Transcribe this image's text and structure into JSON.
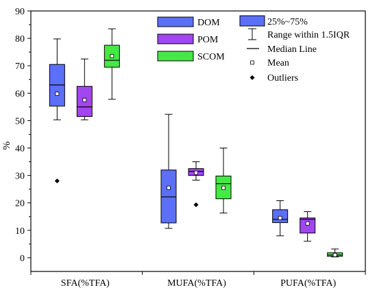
{
  "chart_data": {
    "type": "box",
    "ylabel": "%",
    "ylim": [
      -5,
      90
    ],
    "yticks": [
      0,
      10,
      20,
      30,
      40,
      50,
      60,
      70,
      80,
      90
    ],
    "categories": [
      "SFA(%TFA)",
      "MUFA(%TFA)",
      "PUFA(%TFA)"
    ],
    "series": [
      {
        "name": "DOM",
        "color": "#5b6ff7",
        "boxes": [
          {
            "whisker_low": 50.3,
            "q1": 55.3,
            "median": 63.0,
            "q3": 70.5,
            "whisker_high": 79.8,
            "mean": 59.8,
            "outliers": [
              28.0
            ]
          },
          {
            "whisker_low": 10.7,
            "q1": 12.7,
            "median": 22.2,
            "q3": 32.0,
            "whisker_high": 52.3,
            "mean": 25.5,
            "outliers": []
          },
          {
            "whisker_low": 8.0,
            "q1": 12.8,
            "median": 14.0,
            "q3": 17.5,
            "whisker_high": 20.8,
            "mean": 14.5,
            "outliers": []
          }
        ]
      },
      {
        "name": "POM",
        "color": "#a246f0",
        "boxes": [
          {
            "whisker_low": 50.3,
            "q1": 51.5,
            "median": 55.0,
            "q3": 62.5,
            "whisker_high": 72.5,
            "mean": 57.5,
            "outliers": []
          },
          {
            "whisker_low": 28.3,
            "q1": 30.0,
            "median": 31.5,
            "q3": 32.5,
            "whisker_high": 35.0,
            "mean": 31.0,
            "outliers": [
              19.3
            ]
          },
          {
            "whisker_low": 6.0,
            "q1": 9.0,
            "median": 14.0,
            "q3": 14.5,
            "whisker_high": 16.8,
            "mean": 12.5,
            "outliers": []
          }
        ]
      },
      {
        "name": "SCOM",
        "color": "#45e845",
        "boxes": [
          {
            "whisker_low": 57.8,
            "q1": 69.5,
            "median": 72.0,
            "q3": 77.5,
            "whisker_high": 83.5,
            "mean": 73.5,
            "outliers": []
          },
          {
            "whisker_low": 16.3,
            "q1": 21.5,
            "median": 27.0,
            "q3": 29.8,
            "whisker_high": 40.0,
            "mean": 25.5,
            "outliers": []
          },
          {
            "whisker_low": 0.3,
            "q1": 0.5,
            "median": 1.0,
            "q3": 1.8,
            "whisker_high": 3.2,
            "mean": 1.0,
            "outliers": []
          }
        ]
      }
    ],
    "legend_stats": {
      "box_label": "25%~75%",
      "range_label": "Range within 1.5IQR",
      "median_label": "Median Line",
      "mean_label": "Mean",
      "outliers_label": "Outliers",
      "box_color": "#5b6ff7"
    }
  }
}
